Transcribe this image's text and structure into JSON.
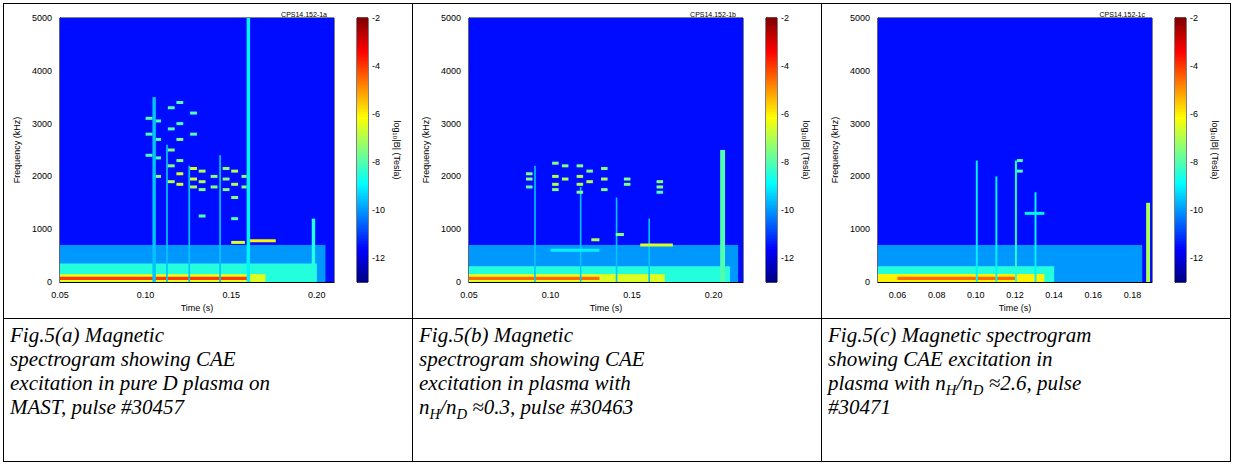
{
  "chart_data": [
    {
      "type": "heatmap",
      "annotation": "CPS14.152-1a",
      "xlabel": "Time (s)",
      "ylabel": "Frequency (kHz)",
      "xlim": [
        0.05,
        0.21
      ],
      "xticks": [
        0.05,
        {
          "value": 0.1,
          "label": "0.10"
        },
        0.15,
        {
          "value": 0.2,
          "label": "0.20"
        }
      ],
      "ylim": [
        0,
        5000
      ],
      "yticks": [
        0,
        1000,
        2000,
        3000,
        4000,
        5000
      ],
      "colorbar": {
        "label": "log₁₀|B| (Tesla)",
        "lim": [
          -13,
          -2
        ],
        "ticks": [
          -2,
          -4,
          -6,
          -8,
          -10,
          -12
        ]
      },
      "regions": [
        {
          "t": [
            0.05,
            0.21
          ],
          "f": [
            0,
            5000
          ],
          "level": -11.5
        },
        {
          "t": [
            0.05,
            0.205
          ],
          "f": [
            0,
            700
          ],
          "level": -10
        },
        {
          "t": [
            0.05,
            0.2
          ],
          "f": [
            0,
            350
          ],
          "level": -8.5
        },
        {
          "t": [
            0.05,
            0.17
          ],
          "f": [
            0,
            150
          ],
          "level": -6.5
        },
        {
          "t": [
            0.05,
            0.16
          ],
          "f": [
            40,
            100
          ],
          "level": -4
        },
        {
          "t": [
            0.104,
            0.106
          ],
          "f": [
            0,
            3500
          ],
          "level": -9.5
        },
        {
          "t": [
            0.112,
            0.113
          ],
          "f": [
            0,
            2600
          ],
          "level": -9.5
        },
        {
          "t": [
            0.125,
            0.126
          ],
          "f": [
            0,
            2200
          ],
          "level": -9.5
        },
        {
          "t": [
            0.143,
            0.144
          ],
          "f": [
            0,
            2400
          ],
          "level": -9.5
        },
        {
          "t": [
            0.159,
            0.161
          ],
          "f": [
            0,
            5000
          ],
          "level": -9
        },
        {
          "t": [
            0.197,
            0.199
          ],
          "f": [
            0,
            1200
          ],
          "level": -8.5
        }
      ],
      "modes": [
        {
          "t": [
            0.1,
            0.104
          ],
          "f": 3100,
          "level": -8
        },
        {
          "t": [
            0.1,
            0.104
          ],
          "f": 2800,
          "level": -8
        },
        {
          "t": [
            0.1,
            0.104
          ],
          "f": 2400,
          "level": -8
        },
        {
          "t": [
            0.106,
            0.109
          ],
          "f": 3050,
          "level": -8
        },
        {
          "t": [
            0.106,
            0.109
          ],
          "f": 2700,
          "level": -8
        },
        {
          "t": [
            0.106,
            0.109
          ],
          "f": 2350,
          "level": -8
        },
        {
          "t": [
            0.106,
            0.109
          ],
          "f": 2000,
          "level": -7.5
        },
        {
          "t": [
            0.113,
            0.117
          ],
          "f": 3300,
          "level": -8
        },
        {
          "t": [
            0.113,
            0.117
          ],
          "f": 2900,
          "level": -8
        },
        {
          "t": [
            0.113,
            0.117
          ],
          "f": 2500,
          "level": -7.5
        },
        {
          "t": [
            0.113,
            0.117
          ],
          "f": 2200,
          "level": -7.5
        },
        {
          "t": [
            0.113,
            0.117
          ],
          "f": 1900,
          "level": -7
        },
        {
          "t": [
            0.118,
            0.122
          ],
          "f": 3400,
          "level": -8
        },
        {
          "t": [
            0.118,
            0.122
          ],
          "f": 3000,
          "level": -8
        },
        {
          "t": [
            0.118,
            0.122
          ],
          "f": 2700,
          "level": -7.5
        },
        {
          "t": [
            0.118,
            0.122
          ],
          "f": 2300,
          "level": -7.5
        },
        {
          "t": [
            0.118,
            0.122
          ],
          "f": 2050,
          "level": -6.5
        },
        {
          "t": [
            0.118,
            0.122
          ],
          "f": 1850,
          "level": -6.5
        },
        {
          "t": [
            0.126,
            0.13
          ],
          "f": 3200,
          "level": -8
        },
        {
          "t": [
            0.126,
            0.13
          ],
          "f": 2800,
          "level": -8
        },
        {
          "t": [
            0.126,
            0.13
          ],
          "f": 2150,
          "level": -6.5
        },
        {
          "t": [
            0.126,
            0.13
          ],
          "f": 1950,
          "level": -6.5
        },
        {
          "t": [
            0.126,
            0.13
          ],
          "f": 1800,
          "level": -7
        },
        {
          "t": [
            0.131,
            0.135
          ],
          "f": 2100,
          "level": -7
        },
        {
          "t": [
            0.131,
            0.135
          ],
          "f": 1900,
          "level": -7
        },
        {
          "t": [
            0.131,
            0.135
          ],
          "f": 1750,
          "level": -7.5
        },
        {
          "t": [
            0.131,
            0.135
          ],
          "f": 1250,
          "level": -8
        },
        {
          "t": [
            0.138,
            0.142
          ],
          "f": 2000,
          "level": -7.5
        },
        {
          "t": [
            0.138,
            0.142
          ],
          "f": 1800,
          "level": -7.5
        },
        {
          "t": [
            0.145,
            0.149
          ],
          "f": 2150,
          "level": -7.5
        },
        {
          "t": [
            0.145,
            0.149
          ],
          "f": 1950,
          "level": -7.5
        },
        {
          "t": [
            0.145,
            0.149
          ],
          "f": 1750,
          "level": -7.5
        },
        {
          "t": [
            0.15,
            0.154
          ],
          "f": 2100,
          "level": -7
        },
        {
          "t": [
            0.15,
            0.154
          ],
          "f": 1850,
          "level": -7
        },
        {
          "t": [
            0.15,
            0.154
          ],
          "f": 1600,
          "level": -7.5
        },
        {
          "t": [
            0.15,
            0.154
          ],
          "f": 1200,
          "level": -8
        },
        {
          "t": [
            0.156,
            0.159
          ],
          "f": 2000,
          "level": -7.5
        },
        {
          "t": [
            0.156,
            0.159
          ],
          "f": 1800,
          "level": -7.5
        },
        {
          "t": [
            0.15,
            0.158
          ],
          "f": 750,
          "level": -6.5
        },
        {
          "t": [
            0.161,
            0.176
          ],
          "f": 780,
          "level": -6
        }
      ],
      "caption": [
        {
          "text": "Fig.5(a) Magnetic spectrogram showing CAE excitation in pure D plasma on MAST, pulse #30457"
        }
      ]
    },
    {
      "type": "heatmap",
      "annotation": "CPS14.152-1b",
      "xlabel": "Time (s)",
      "ylabel": "Frequency (kHz)",
      "xlim": [
        0.05,
        0.218
      ],
      "xticks": [
        0.05,
        {
          "value": 0.1,
          "label": "0.10"
        },
        0.15,
        {
          "value": 0.2,
          "label": "0.20"
        }
      ],
      "ylim": [
        0,
        5000
      ],
      "yticks": [
        0,
        1000,
        2000,
        3000,
        4000,
        5000
      ],
      "colorbar": {
        "label": "log₁₀|B| (Tesla)",
        "lim": [
          -13,
          -2
        ],
        "ticks": [
          -2,
          -4,
          -6,
          -8,
          -10,
          -12
        ]
      },
      "regions": [
        {
          "t": [
            0.05,
            0.218
          ],
          "f": [
            0,
            5000
          ],
          "level": -11.5
        },
        {
          "t": [
            0.05,
            0.215
          ],
          "f": [
            0,
            700
          ],
          "level": -10
        },
        {
          "t": [
            0.05,
            0.21
          ],
          "f": [
            0,
            300
          ],
          "level": -8.5
        },
        {
          "t": [
            0.05,
            0.17
          ],
          "f": [
            0,
            150
          ],
          "level": -6.5
        },
        {
          "t": [
            0.05,
            0.13
          ],
          "f": [
            40,
            100
          ],
          "level": -4.5
        },
        {
          "t": [
            0.09,
            0.091
          ],
          "f": [
            0,
            2200
          ],
          "level": -9.5
        },
        {
          "t": [
            0.118,
            0.119
          ],
          "f": [
            0,
            1800
          ],
          "level": -9.5
        },
        {
          "t": [
            0.14,
            0.141
          ],
          "f": [
            0,
            1600
          ],
          "level": -9.5
        },
        {
          "t": [
            0.16,
            0.161
          ],
          "f": [
            0,
            1200
          ],
          "level": -9.5
        },
        {
          "t": [
            0.204,
            0.207
          ],
          "f": [
            0,
            2500
          ],
          "level": -8
        }
      ],
      "modes": [
        {
          "t": [
            0.085,
            0.089
          ],
          "f": 2050,
          "level": -7.5
        },
        {
          "t": [
            0.085,
            0.089
          ],
          "f": 1950,
          "level": -7.5
        },
        {
          "t": [
            0.085,
            0.089
          ],
          "f": 1800,
          "level": -8
        },
        {
          "t": [
            0.101,
            0.105
          ],
          "f": 2250,
          "level": -7.5
        },
        {
          "t": [
            0.101,
            0.105
          ],
          "f": 2000,
          "level": -7
        },
        {
          "t": [
            0.101,
            0.105
          ],
          "f": 1850,
          "level": -7
        },
        {
          "t": [
            0.101,
            0.105
          ],
          "f": 1750,
          "level": -7.5
        },
        {
          "t": [
            0.107,
            0.111
          ],
          "f": 2200,
          "level": -7.5
        },
        {
          "t": [
            0.107,
            0.111
          ],
          "f": 1950,
          "level": -7
        },
        {
          "t": [
            0.116,
            0.12
          ],
          "f": 2200,
          "level": -7.5
        },
        {
          "t": [
            0.116,
            0.12
          ],
          "f": 2000,
          "level": -7
        },
        {
          "t": [
            0.116,
            0.12
          ],
          "f": 1850,
          "level": -7
        },
        {
          "t": [
            0.116,
            0.12
          ],
          "f": 1700,
          "level": -7.5
        },
        {
          "t": [
            0.122,
            0.126
          ],
          "f": 2100,
          "level": -7.5
        },
        {
          "t": [
            0.122,
            0.126
          ],
          "f": 1900,
          "level": -7
        },
        {
          "t": [
            0.131,
            0.135
          ],
          "f": 2150,
          "level": -7.5
        },
        {
          "t": [
            0.131,
            0.135
          ],
          "f": 1950,
          "level": -7
        },
        {
          "t": [
            0.131,
            0.135
          ],
          "f": 1750,
          "level": -7.5
        },
        {
          "t": [
            0.145,
            0.149
          ],
          "f": 1950,
          "level": -7.5
        },
        {
          "t": [
            0.145,
            0.149
          ],
          "f": 1850,
          "level": -7.5
        },
        {
          "t": [
            0.165,
            0.169
          ],
          "f": 1900,
          "level": -7.5
        },
        {
          "t": [
            0.165,
            0.169
          ],
          "f": 1800,
          "level": -7.5
        },
        {
          "t": [
            0.165,
            0.169
          ],
          "f": 1700,
          "level": -8
        },
        {
          "t": [
            0.1,
            0.13
          ],
          "f": 600,
          "level": -9
        },
        {
          "t": [
            0.125,
            0.13
          ],
          "f": 800,
          "level": -7
        },
        {
          "t": [
            0.14,
            0.145
          ],
          "f": 900,
          "level": -7.5
        },
        {
          "t": [
            0.155,
            0.175
          ],
          "f": 700,
          "level": -6.5
        }
      ],
      "caption": [
        {
          "text": "Fig.5(b) Magnetic spectrogram showing CAE excitation in plasma with n"
        },
        {
          "sub": "H"
        },
        {
          "text": "/n"
        },
        {
          "sub": "D"
        },
        {
          "text": " ≈0.3, pulse #30463"
        }
      ]
    },
    {
      "type": "heatmap",
      "annotation": "CPS14.152-1c",
      "xlabel": "Time (s)",
      "ylabel": "Frequency (kHz)",
      "xlim": [
        0.05,
        0.19
      ],
      "xticks": [
        0.06,
        0.08,
        {
          "value": 0.1,
          "label": "0.10"
        },
        0.12,
        0.14,
        0.16,
        0.18
      ],
      "ylim": [
        0,
        5000
      ],
      "yticks": [
        0,
        1000,
        2000,
        3000,
        4000,
        5000
      ],
      "colorbar": {
        "label": "log₁₀|B| (Tesla)",
        "lim": [
          -13,
          -2
        ],
        "ticks": [
          -2,
          -4,
          -6,
          -8,
          -10,
          -12
        ]
      },
      "regions": [
        {
          "t": [
            0.05,
            0.19
          ],
          "f": [
            0,
            5000
          ],
          "level": -11.5
        },
        {
          "t": [
            0.05,
            0.185
          ],
          "f": [
            0,
            700
          ],
          "level": -10
        },
        {
          "t": [
            0.05,
            0.14
          ],
          "f": [
            0,
            300
          ],
          "level": -8.5
        },
        {
          "t": [
            0.05,
            0.135
          ],
          "f": [
            0,
            150
          ],
          "level": -6
        },
        {
          "t": [
            0.06,
            0.12
          ],
          "f": [
            40,
            100
          ],
          "level": -4.5
        },
        {
          "t": [
            0.1,
            0.101
          ],
          "f": [
            0,
            2300
          ],
          "level": -9
        },
        {
          "t": [
            0.11,
            0.111
          ],
          "f": [
            0,
            2000
          ],
          "level": -9
        },
        {
          "t": [
            0.12,
            0.121
          ],
          "f": [
            0,
            2300
          ],
          "level": -8.5
        },
        {
          "t": [
            0.13,
            0.131
          ],
          "f": [
            0,
            1700
          ],
          "level": -9
        },
        {
          "t": [
            0.187,
            0.189
          ],
          "f": [
            0,
            1500
          ],
          "level": -7
        }
      ],
      "modes": [
        {
          "t": [
            0.121,
            0.124
          ],
          "f": 2300,
          "level": -8
        },
        {
          "t": [
            0.121,
            0.124
          ],
          "f": 2100,
          "level": -8
        },
        {
          "t": [
            0.125,
            0.135
          ],
          "f": 1300,
          "level": -9
        }
      ],
      "caption": [
        {
          "text": "Fig.5(c) Magnetic spectrogram showing CAE excitation in plasma with n"
        },
        {
          "sub": "H"
        },
        {
          "text": "/n"
        },
        {
          "sub": "D"
        },
        {
          "text": " ≈2.6, pulse #30471"
        }
      ]
    }
  ]
}
